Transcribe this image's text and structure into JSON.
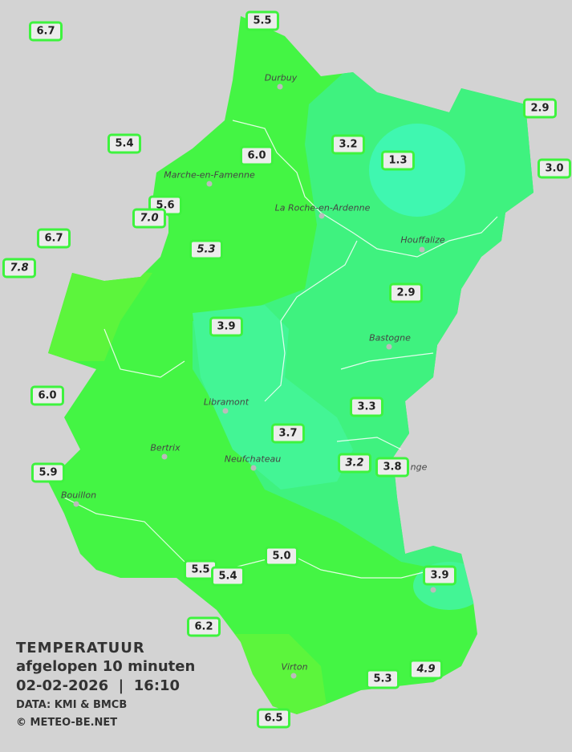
{
  "legend": {
    "title": "TEMPERATUUR",
    "period": "afgelopen 10 minuten",
    "datetime": "02-02-2026  |  16:10",
    "source": "DATA: KMI & BMCB",
    "copyright": "© METEO-BE.NET"
  },
  "colors": {
    "background": "#d3d3d3",
    "zone_warm": "#44f544",
    "zone_mild": "#3ff27f",
    "zone_cool": "#3ff7b0",
    "zone_warmest": "#5cf53c",
    "label_border": "#3ef33e"
  },
  "towns": [
    "Durbuy",
    "Marche-en-Famenne",
    "La Roche-en-Ardenne",
    "Houffalize",
    "Bastogne",
    "Libramont",
    "Bertrix",
    "Neufchateau",
    "Bouillon",
    "Virton",
    "nge"
  ],
  "stations": [
    {
      "value": "6.7",
      "italic": false
    },
    {
      "value": "5.5",
      "italic": false
    },
    {
      "value": "2.9",
      "italic": false
    },
    {
      "value": "3.0",
      "italic": false
    },
    {
      "value": "5.4",
      "italic": false
    },
    {
      "value": "3.2",
      "italic": false
    },
    {
      "value": "1.3",
      "italic": false
    },
    {
      "value": "6.0",
      "italic": false
    },
    {
      "value": "5.6",
      "italic": false
    },
    {
      "value": "7.0",
      "italic": true
    },
    {
      "value": "6.7",
      "italic": false
    },
    {
      "value": "7.8",
      "italic": true
    },
    {
      "value": "5.3",
      "italic": true
    },
    {
      "value": "2.9",
      "italic": false
    },
    {
      "value": "3.9",
      "italic": false
    },
    {
      "value": "6.0",
      "italic": false
    },
    {
      "value": "3.3",
      "italic": false
    },
    {
      "value": "3.7",
      "italic": false
    },
    {
      "value": "3.2",
      "italic": true
    },
    {
      "value": "3.8",
      "italic": false
    },
    {
      "value": "5.9",
      "italic": false
    },
    {
      "value": "5.0",
      "italic": false
    },
    {
      "value": "5.5",
      "italic": false
    },
    {
      "value": "5.4",
      "italic": false
    },
    {
      "value": "3.9",
      "italic": false
    },
    {
      "value": "6.2",
      "italic": false
    },
    {
      "value": "5.3",
      "italic": false
    },
    {
      "value": "4.9",
      "italic": true
    },
    {
      "value": "6.5",
      "italic": false
    }
  ]
}
